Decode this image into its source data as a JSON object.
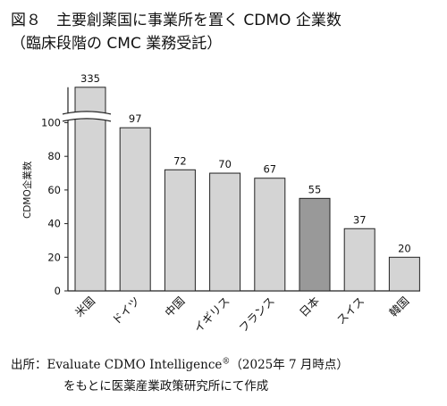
{
  "title": {
    "line1": "図８　主要創薬国に事業所を置く CDMO 企業数",
    "line2": "（臨床段階の CMC 業務受託）"
  },
  "source": {
    "line1_prefix": "出所：Evaluate CDMO Intelligence",
    "line1_mark": "®",
    "line1_suffix": "（2025年 7 月時点）",
    "line2": "をもとに医薬産業政策研究所にて作成"
  },
  "chart_data": {
    "type": "bar",
    "ylabel": "CDMO企業数",
    "ylim": [
      0,
      120
    ],
    "yticks": [
      0,
      20,
      40,
      60,
      80,
      100
    ],
    "axis_break": true,
    "grid": false,
    "categories": [
      "米国",
      "ドイツ",
      "中国",
      "イギリス",
      "フランス",
      "日本",
      "スイス",
      "韓国"
    ],
    "values": [
      335,
      97,
      72,
      70,
      67,
      55,
      37,
      20
    ],
    "colors": [
      "#d4d4d4",
      "#d4d4d4",
      "#d4d4d4",
      "#d4d4d4",
      "#d4d4d4",
      "#999999",
      "#d4d4d4",
      "#d4d4d4"
    ]
  }
}
